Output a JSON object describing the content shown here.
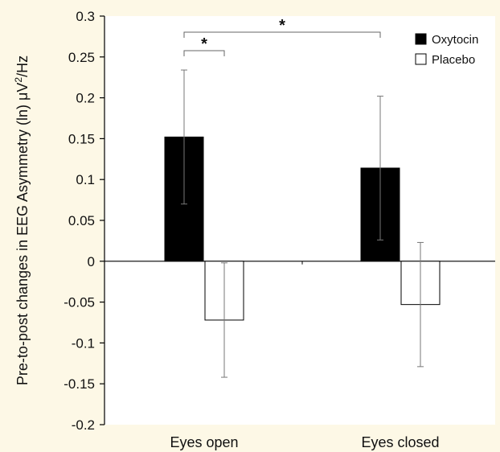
{
  "chart_data": {
    "type": "bar",
    "categories": [
      "Eyes open",
      "Eyes closed"
    ],
    "series": [
      {
        "name": "Oxytocin",
        "values": [
          0.152,
          0.114
        ],
        "error": [
          0.082,
          0.088
        ],
        "color": "#000000"
      },
      {
        "name": "Placebo",
        "values": [
          -0.072,
          -0.053
        ],
        "error": [
          0.07,
          0.076
        ],
        "color": "#ffffff"
      }
    ],
    "ylabel": "Pre-to-post changes in EEG Asymmetry (ln) μV²/Hz",
    "ylim": [
      -0.2,
      0.3
    ],
    "yticks": [
      0.3,
      0.25,
      0.2,
      0.15,
      0.1,
      0.05,
      0,
      -0.05,
      -0.1,
      -0.15,
      -0.2
    ],
    "ytick_labels": [
      "0.3",
      "0.25",
      "0.2",
      "0.15",
      "0.1",
      "0.05",
      "0",
      "-0.05",
      "-0.1",
      "-0.15",
      "-0.2"
    ],
    "legend_position": "top-right",
    "grid": false,
    "annotations": [
      {
        "text": "*",
        "from": "Eyes open / Oxytocin",
        "to": "Eyes open / Placebo"
      },
      {
        "text": "*",
        "from": "Eyes open / Oxytocin",
        "to": "Eyes closed / Oxytocin"
      }
    ]
  },
  "ylabel_parts": {
    "main": "Pre-to-post changes in EEG Asymmetry (ln) μV",
    "sup": "2",
    "tail": "/Hz"
  },
  "colors": {
    "background": "#fdf8e6",
    "plot_background": "#ffffff",
    "axis": "#000000"
  }
}
